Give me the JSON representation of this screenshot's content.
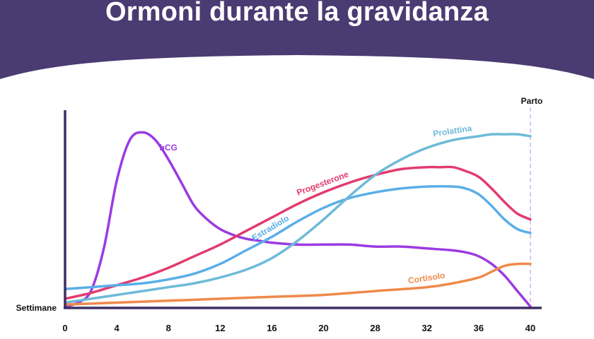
{
  "title": "Ormoni durante la gravidanza",
  "colors": {
    "banner": "#4a3b72",
    "axis": "#3d2f63",
    "delivery_line": "#d9c8f0"
  },
  "chart_data": {
    "type": "line",
    "title": "Ormoni durante la gravidanza",
    "xlabel": "Settimane",
    "ylabel": "",
    "x_ticks": [
      "0",
      "4",
      "8",
      "12",
      "16",
      "20",
      "28",
      "32",
      "36",
      "40"
    ],
    "x_tick_positions": [
      0,
      4,
      8,
      12,
      16,
      20,
      24,
      28,
      32,
      36
    ],
    "xlim": [
      0,
      36
    ],
    "ylim": [
      0,
      100
    ],
    "grid": false,
    "annotation": {
      "label": "Parto",
      "x": 36
    },
    "series": [
      {
        "name": "hCG",
        "color": "#9b3be0",
        "points": [
          [
            0,
            0
          ],
          [
            1,
            2
          ],
          [
            2,
            8
          ],
          [
            3,
            30
          ],
          [
            4,
            65
          ],
          [
            5,
            86
          ],
          [
            6,
            90
          ],
          [
            7,
            86
          ],
          [
            8,
            76
          ],
          [
            9,
            64
          ],
          [
            10,
            52
          ],
          [
            11,
            45
          ],
          [
            12,
            40
          ],
          [
            13,
            37
          ],
          [
            14,
            35
          ],
          [
            15,
            34
          ],
          [
            16,
            33
          ],
          [
            18,
            32
          ],
          [
            20,
            32
          ],
          [
            22,
            32
          ],
          [
            24,
            31
          ],
          [
            26,
            31
          ],
          [
            28,
            30
          ],
          [
            30,
            29
          ],
          [
            31,
            28
          ],
          [
            32,
            26
          ],
          [
            33,
            22
          ],
          [
            34,
            16
          ],
          [
            35,
            8
          ],
          [
            36,
            0
          ]
        ],
        "label_at": 8
      },
      {
        "name": "Progesterone",
        "color": "#e23b6e",
        "points": [
          [
            0,
            4
          ],
          [
            2,
            7
          ],
          [
            4,
            11
          ],
          [
            6,
            15
          ],
          [
            8,
            20
          ],
          [
            10,
            26
          ],
          [
            12,
            32
          ],
          [
            14,
            39
          ],
          [
            16,
            46
          ],
          [
            18,
            53
          ],
          [
            20,
            59
          ],
          [
            22,
            64
          ],
          [
            24,
            68
          ],
          [
            26,
            71
          ],
          [
            28,
            72
          ],
          [
            29,
            72
          ],
          [
            30,
            72
          ],
          [
            31,
            70
          ],
          [
            32,
            67
          ],
          [
            33,
            61
          ],
          [
            34,
            54
          ],
          [
            35,
            48
          ],
          [
            36,
            45
          ]
        ],
        "label_at": 20
      },
      {
        "name": "Estradiolo",
        "color": "#5aaee8",
        "points": [
          [
            0,
            9
          ],
          [
            2,
            10
          ],
          [
            4,
            11
          ],
          [
            6,
            12
          ],
          [
            8,
            14
          ],
          [
            10,
            17
          ],
          [
            12,
            22
          ],
          [
            14,
            29
          ],
          [
            16,
            36
          ],
          [
            18,
            44
          ],
          [
            20,
            51
          ],
          [
            22,
            56
          ],
          [
            24,
            59
          ],
          [
            26,
            61
          ],
          [
            28,
            62
          ],
          [
            30,
            62
          ],
          [
            31,
            61
          ],
          [
            32,
            58
          ],
          [
            33,
            52
          ],
          [
            34,
            45
          ],
          [
            35,
            40
          ],
          [
            36,
            38
          ]
        ],
        "label_at": 16
      },
      {
        "name": "Prolattina",
        "color": "#6dbad8",
        "points": [
          [
            0,
            2
          ],
          [
            2,
            4
          ],
          [
            4,
            6
          ],
          [
            6,
            8
          ],
          [
            8,
            10
          ],
          [
            10,
            12
          ],
          [
            12,
            15
          ],
          [
            14,
            19
          ],
          [
            16,
            25
          ],
          [
            18,
            34
          ],
          [
            20,
            45
          ],
          [
            22,
            57
          ],
          [
            24,
            68
          ],
          [
            26,
            76
          ],
          [
            28,
            82
          ],
          [
            30,
            86
          ],
          [
            32,
            88
          ],
          [
            33,
            89
          ],
          [
            34,
            89
          ],
          [
            35,
            89
          ],
          [
            36,
            88
          ]
        ],
        "label_at": 30
      },
      {
        "name": "Cortisolo",
        "color": "#ee8a4a",
        "points": [
          [
            0,
            1
          ],
          [
            4,
            2
          ],
          [
            8,
            3
          ],
          [
            12,
            4
          ],
          [
            16,
            5
          ],
          [
            20,
            6
          ],
          [
            24,
            8
          ],
          [
            28,
            10
          ],
          [
            30,
            12
          ],
          [
            32,
            15
          ],
          [
            33,
            18
          ],
          [
            34,
            21
          ],
          [
            35,
            22
          ],
          [
            36,
            22
          ]
        ],
        "label_at": 28
      }
    ]
  }
}
